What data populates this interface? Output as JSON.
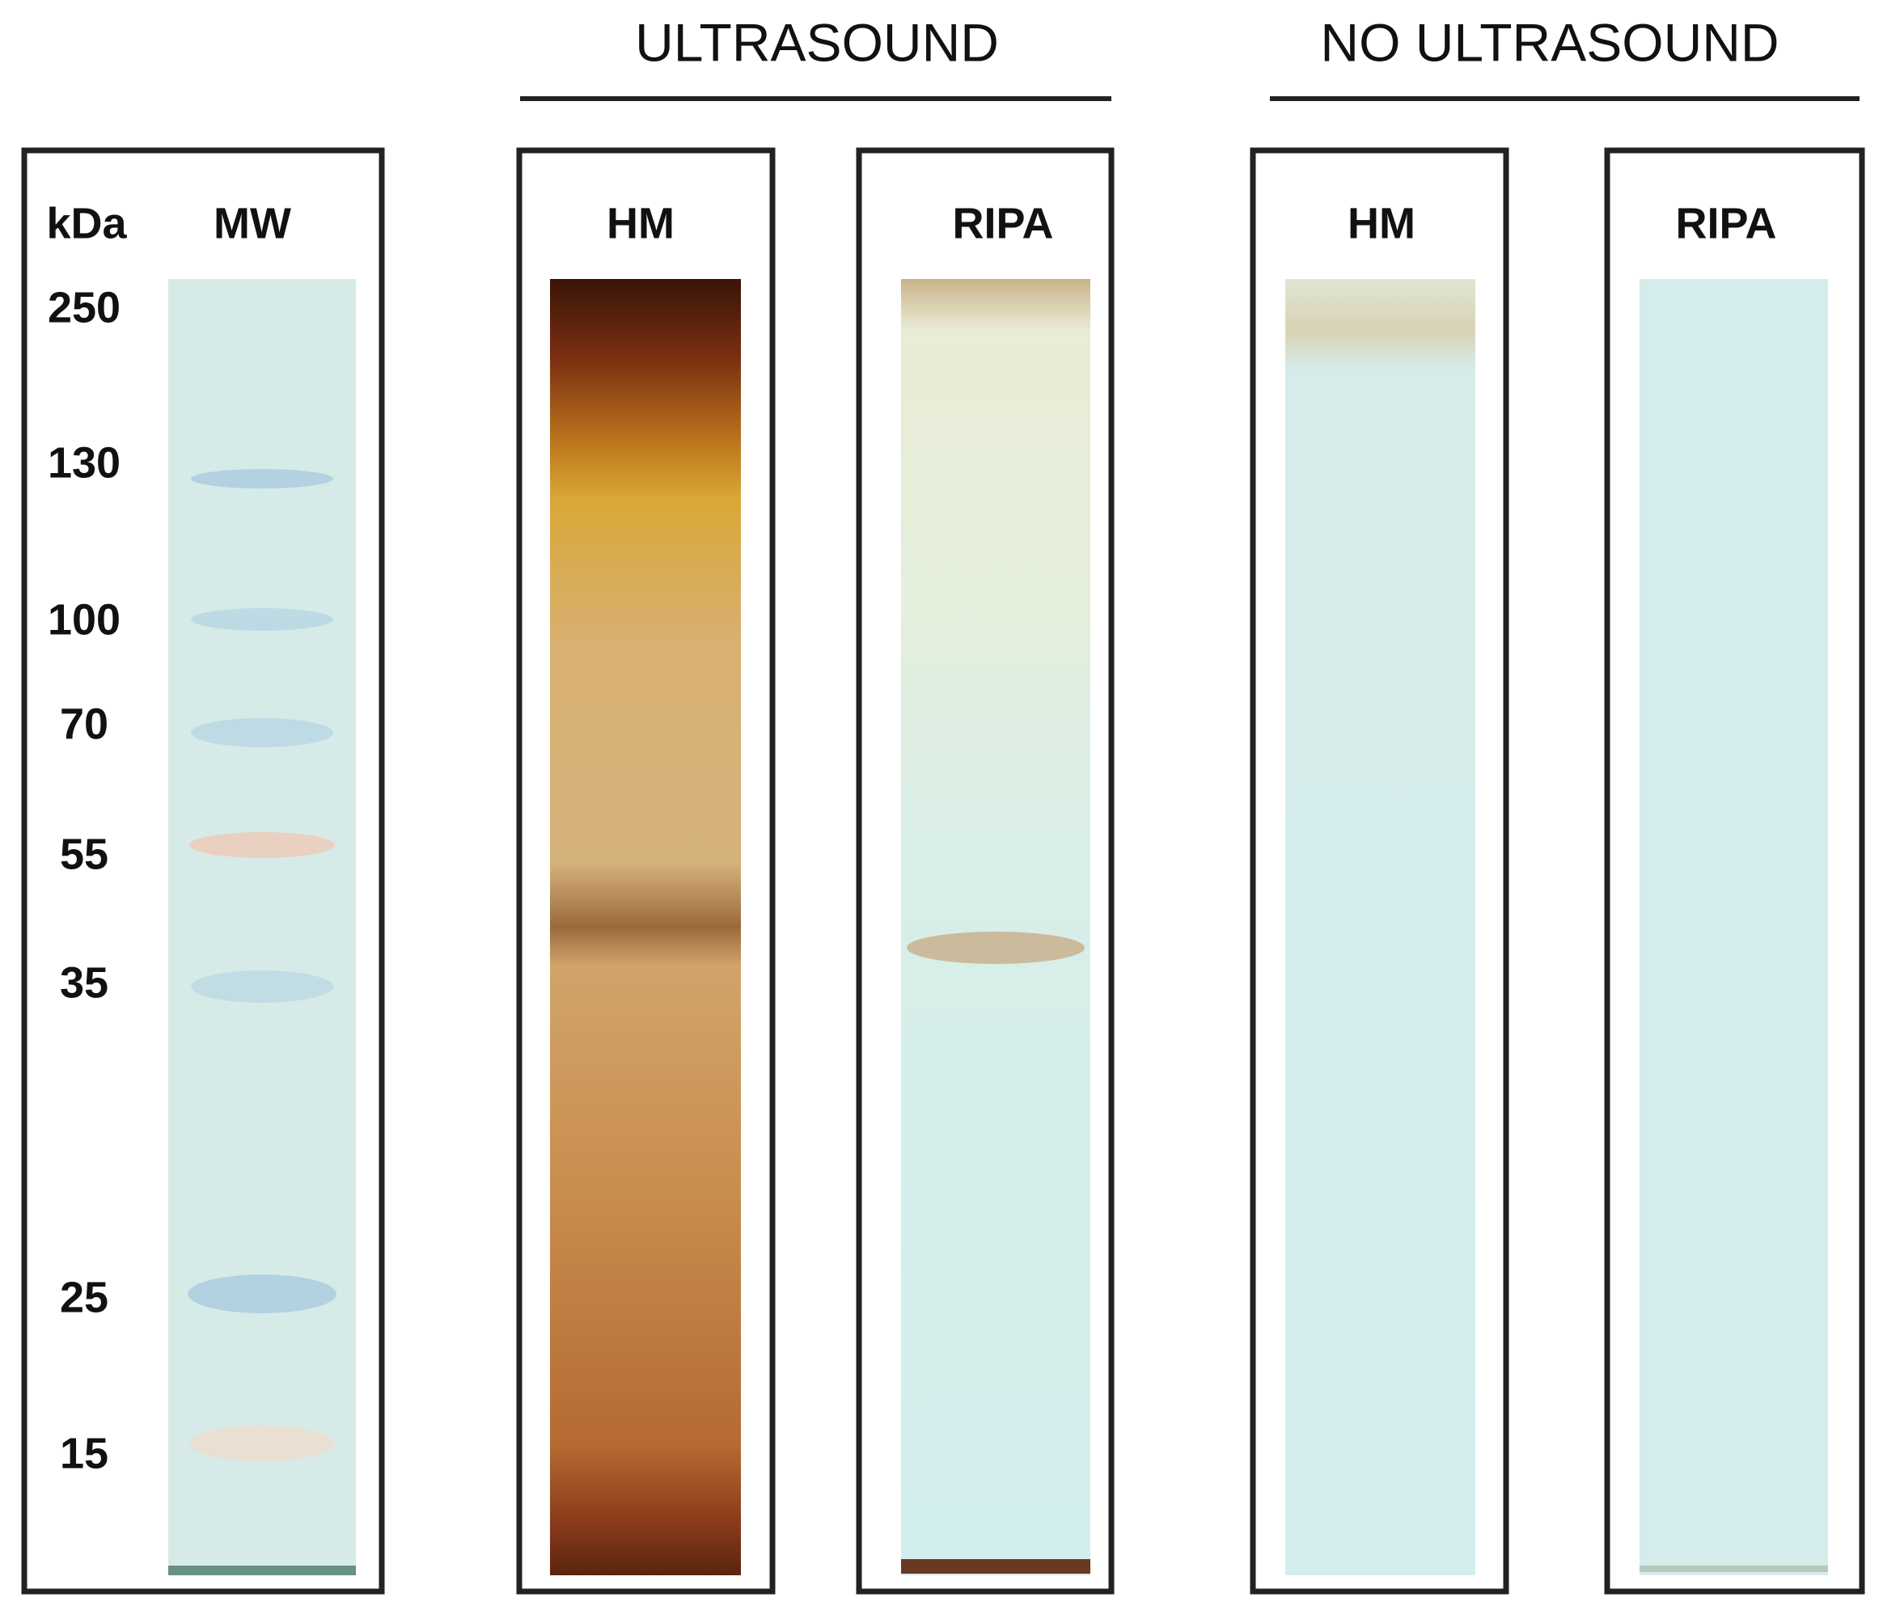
{
  "groups": [
    {
      "label": "ULTRASOUND"
    },
    {
      "label": "NO ULTRASOUND"
    }
  ],
  "ladder": {
    "unit_label": "kDa",
    "lane_label": "MW",
    "markers": [
      "250",
      "130",
      "100",
      "70",
      "55",
      "35",
      "25",
      "15"
    ]
  },
  "lanes": [
    {
      "label": "HM"
    },
    {
      "label": "RIPA"
    },
    {
      "label": "HM"
    },
    {
      "label": "RIPA"
    }
  ]
}
